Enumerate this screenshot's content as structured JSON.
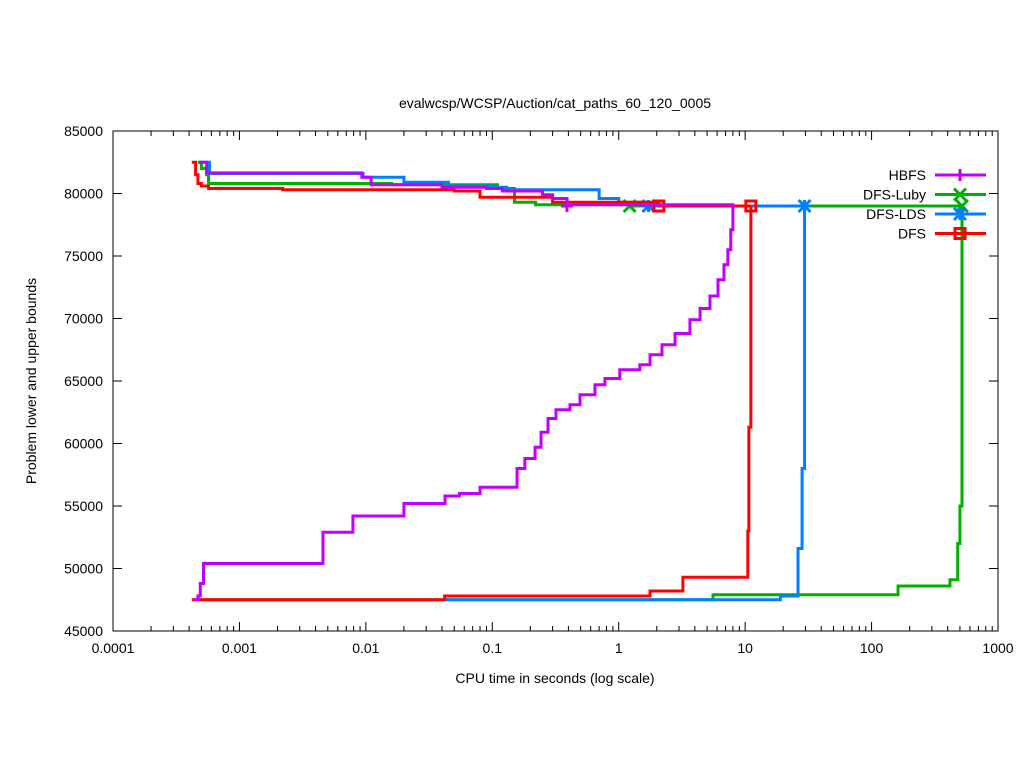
{
  "chart_data": {
    "type": "line",
    "title": "evalwcsp/WCSP/Auction/cat_paths_60_120_0005",
    "xlabel": "CPU time in seconds (log scale)",
    "ylabel": "Problem lower and upper bounds",
    "xscale": "log",
    "xlim": [
      0.0001,
      1000
    ],
    "ylim": [
      45000,
      85000
    ],
    "xticks": [
      0.0001,
      0.001,
      0.01,
      0.1,
      1,
      10,
      100,
      1000
    ],
    "xtick_labels": [
      "0.0001",
      "0.001",
      "0.01",
      "0.1",
      "1",
      "10",
      "100",
      "1000"
    ],
    "yticks": [
      45000,
      50000,
      55000,
      60000,
      65000,
      70000,
      75000,
      80000,
      85000
    ],
    "ytick_labels": [
      "45000",
      "50000",
      "55000",
      "60000",
      "65000",
      "70000",
      "75000",
      "80000",
      "85000"
    ],
    "legend_position": "top-right",
    "series": [
      {
        "name": "HBFS",
        "color": "#c000ff",
        "marker": "plus",
        "upper": [
          [
            0.00048,
            82500
          ],
          [
            0.00055,
            81650
          ],
          [
            0.0093,
            81300
          ],
          [
            0.011,
            80700
          ],
          [
            0.04,
            80500
          ],
          [
            0.09,
            80400
          ],
          [
            0.12,
            80200
          ],
          [
            0.25,
            79900
          ],
          [
            0.3,
            79600
          ],
          [
            0.39,
            79100
          ],
          [
            8.0,
            79000
          ]
        ],
        "lower": [
          [
            0.00043,
            47500
          ],
          [
            0.00047,
            47800
          ],
          [
            0.00049,
            48800
          ],
          [
            0.00052,
            50400
          ],
          [
            0.00458,
            52900
          ],
          [
            0.0079,
            54200
          ],
          [
            0.02,
            55200
          ],
          [
            0.0423,
            55800
          ],
          [
            0.055,
            56000
          ],
          [
            0.08,
            56500
          ],
          [
            0.146,
            56500
          ],
          [
            0.157,
            58000
          ],
          [
            0.181,
            58800
          ],
          [
            0.218,
            59700
          ],
          [
            0.243,
            60900
          ],
          [
            0.276,
            62000
          ],
          [
            0.319,
            62700
          ],
          [
            0.412,
            63100
          ],
          [
            0.494,
            63900
          ],
          [
            0.649,
            64700
          ],
          [
            0.778,
            65200
          ],
          [
            1.02,
            65900
          ],
          [
            1.47,
            66300
          ],
          [
            1.77,
            67100
          ],
          [
            2.2,
            67900
          ],
          [
            2.79,
            68800
          ],
          [
            3.66,
            69900
          ],
          [
            4.4,
            70800
          ],
          [
            5.27,
            71800
          ],
          [
            6.1,
            73100
          ],
          [
            6.8,
            74300
          ],
          [
            7.3,
            75500
          ],
          [
            7.7,
            77100
          ],
          [
            8.0,
            79100
          ]
        ],
        "markers": [
          [
            0.39,
            79000
          ]
        ]
      },
      {
        "name": "DFS-Luby",
        "color": "#00b000",
        "marker": "cross",
        "upper": [
          [
            0.00047,
            82500
          ],
          [
            0.0005,
            82000
          ],
          [
            0.00055,
            81500
          ],
          [
            0.00057,
            80800
          ],
          [
            0.016,
            80700
          ],
          [
            0.11,
            80400
          ],
          [
            0.15,
            79300
          ],
          [
            0.22,
            79100
          ],
          [
            1.22,
            79000
          ],
          [
            519,
            79000
          ]
        ],
        "lower": [
          [
            0.00047,
            47500
          ],
          [
            5.57,
            47900
          ],
          [
            162,
            48600
          ],
          [
            417,
            49100
          ],
          [
            480,
            52000
          ],
          [
            500,
            55000
          ],
          [
            519,
            79000
          ]
        ],
        "markers": [
          [
            1.22,
            79000
          ],
          [
            519,
            79000
          ]
        ]
      },
      {
        "name": "DFS-LDS",
        "color": "#0080ff",
        "marker": "star",
        "upper": [
          [
            0.0005,
            82500
          ],
          [
            0.00058,
            81600
          ],
          [
            0.0095,
            81300
          ],
          [
            0.02,
            80900
          ],
          [
            0.045,
            80600
          ],
          [
            0.1,
            80500
          ],
          [
            0.13,
            80300
          ],
          [
            0.7,
            79600
          ],
          [
            1.0,
            79300
          ],
          [
            1.72,
            79000
          ],
          [
            29.5,
            79000
          ]
        ],
        "lower": [
          [
            0.042,
            47500
          ],
          [
            19,
            47800
          ],
          [
            26.2,
            51600
          ],
          [
            28.2,
            58000
          ],
          [
            29.5,
            79000
          ]
        ],
        "markers": [
          [
            1.72,
            79000
          ],
          [
            29.5,
            79000
          ]
        ]
      },
      {
        "name": "DFS",
        "color": "#ff0000",
        "marker": "square",
        "upper": [
          [
            0.00042,
            82500
          ],
          [
            0.00045,
            81500
          ],
          [
            0.00047,
            80800
          ],
          [
            0.0005,
            80600
          ],
          [
            0.00057,
            80400
          ],
          [
            0.0022,
            80300
          ],
          [
            0.05,
            80200
          ],
          [
            0.08,
            79700
          ],
          [
            0.3,
            79300
          ],
          [
            2.08,
            79000
          ],
          [
            11.1,
            79000
          ]
        ],
        "lower": [
          [
            0.00042,
            47500
          ],
          [
            0.042,
            47800
          ],
          [
            1.77,
            48200
          ],
          [
            3.22,
            49300
          ],
          [
            10.5,
            53000
          ],
          [
            10.7,
            61300
          ],
          [
            11.1,
            79000
          ]
        ],
        "markers": [
          [
            2.08,
            79000
          ],
          [
            11.1,
            79000
          ]
        ]
      }
    ]
  }
}
